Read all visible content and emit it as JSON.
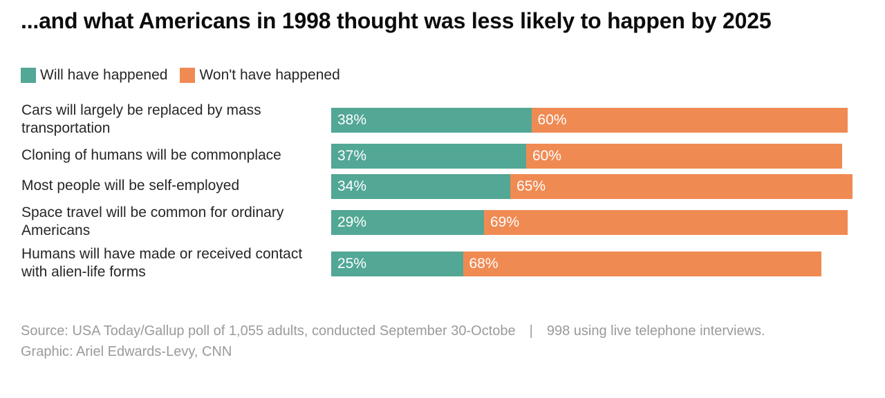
{
  "title": "...and what Americans in 1998 thought was less likely to happen by 2025",
  "colors": {
    "will": "#52a795",
    "wont": "#f08a53"
  },
  "legend": [
    {
      "label": "Will have happened",
      "color_key": "will"
    },
    {
      "label": "Won't have happened",
      "color_key": "wont"
    }
  ],
  "chart_data": {
    "type": "bar",
    "orientation": "horizontal-stacked",
    "title": "...and what Americans in 1998 thought was less likely to happen by 2025",
    "categories": [
      "Cars will largely be replaced by mass transportation",
      "Cloning of humans will be commonplace",
      "Most people will be self-employed",
      "Space travel will be common for ordinary Americans",
      "Humans will have made or received contact with alien-life forms"
    ],
    "series": [
      {
        "name": "Will have happened",
        "values": [
          38,
          37,
          34,
          29,
          25
        ]
      },
      {
        "name": "Won't have happened",
        "values": [
          60,
          60,
          65,
          69,
          68
        ]
      }
    ],
    "xlim": [
      0,
      100
    ],
    "value_suffix": "%",
    "legend_position": "top-left"
  },
  "source": {
    "line1": "Source: USA Today/Gallup poll of 1,055 adults, conducted September 30-Octobe | 998 using live telephone interviews.",
    "line2": "Graphic: Ariel Edwards-Levy, CNN"
  }
}
